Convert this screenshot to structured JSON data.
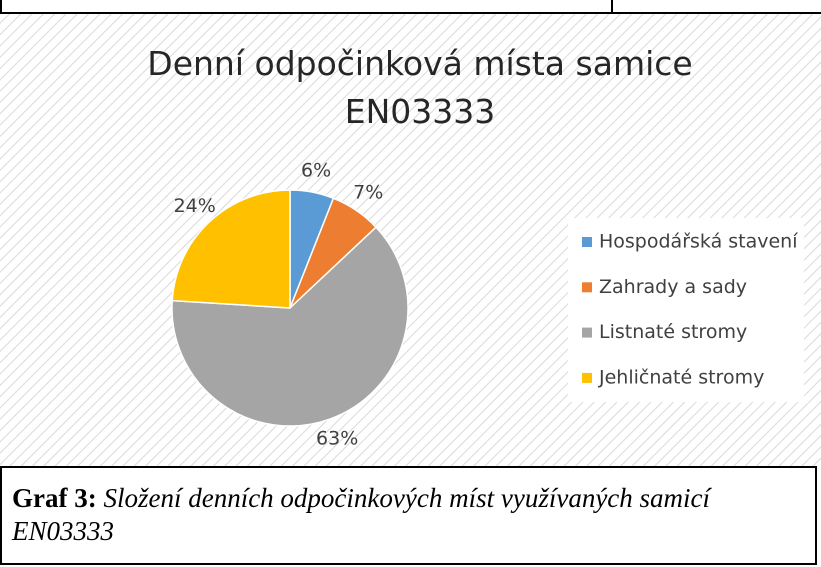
{
  "chart_data": {
    "type": "pie",
    "title": "Denní odpočinková místa samice EN03333",
    "categories": [
      "Hospodářská stavení",
      "Zahrady a sady",
      "Listnaté stromy",
      "Jehličnaté stromy"
    ],
    "values": [
      6,
      7,
      63,
      24
    ],
    "value_labels": [
      "6%",
      "7%",
      "63%",
      "24%"
    ],
    "colors": [
      "#5b9bd5",
      "#ed7d31",
      "#a5a5a5",
      "#ffc000"
    ],
    "legend": "right"
  },
  "caption": {
    "label": "Graf 3:",
    "text": "Složení denních odpočinkových míst využívaných samicí EN03333"
  }
}
